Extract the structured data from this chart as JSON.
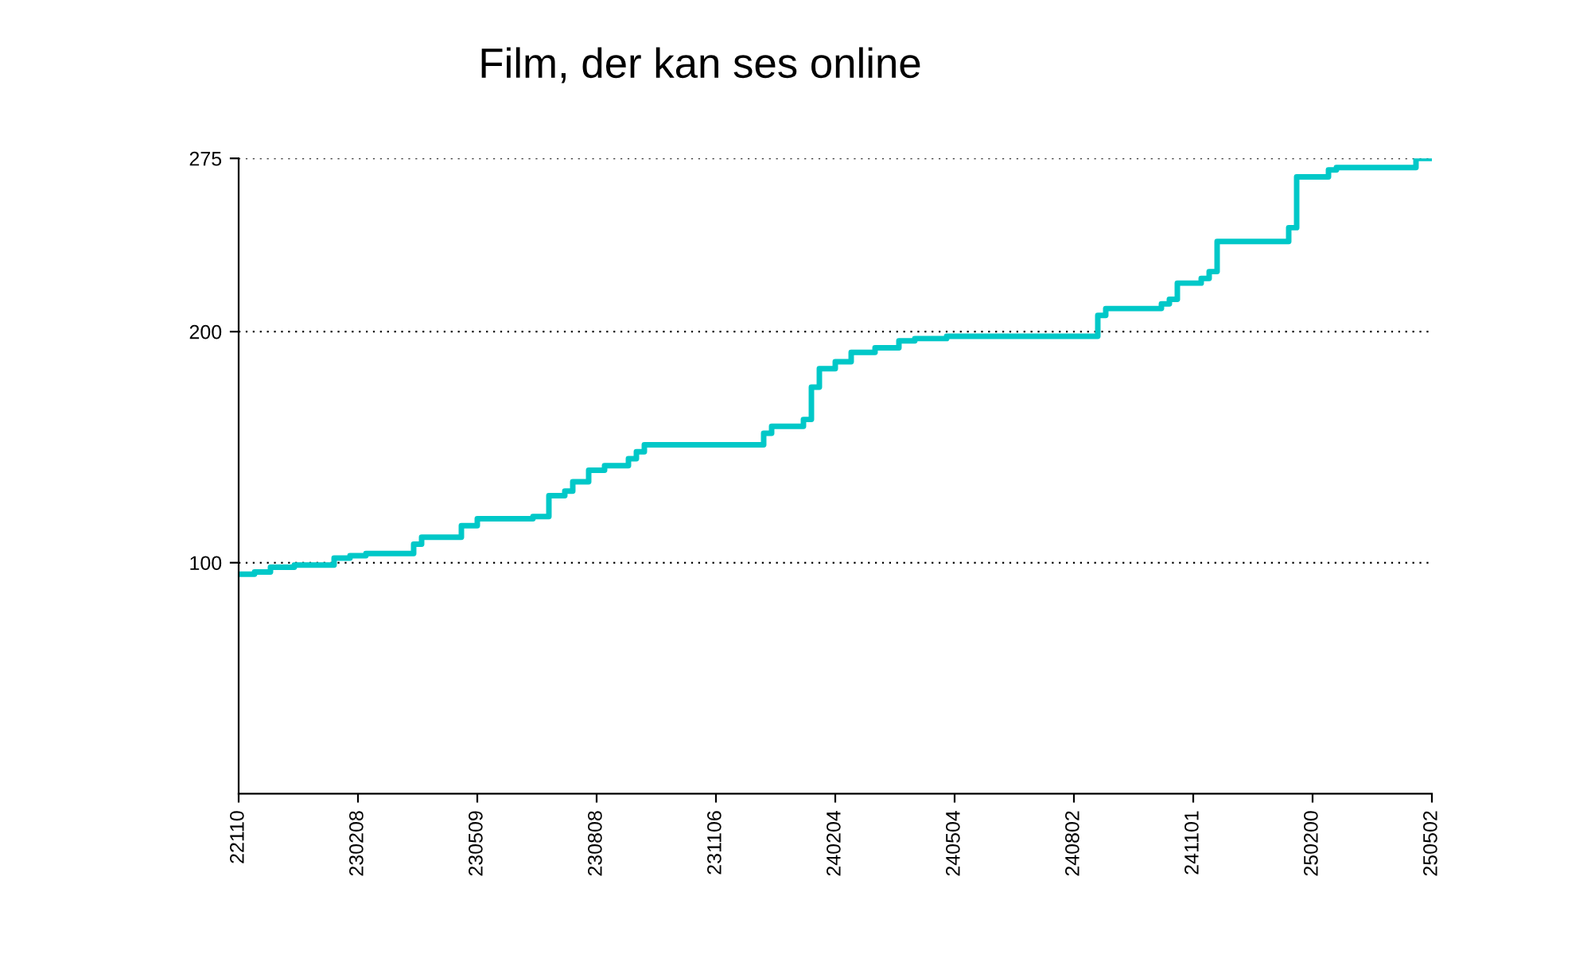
{
  "chart_data": {
    "type": "step",
    "title": "Film, der kan ses online",
    "categories": [
      "22110",
      null,
      null,
      null,
      null,
      null,
      null,
      null,
      null,
      null,
      null,
      null,
      null,
      null,
      null,
      "230208",
      null,
      null,
      null,
      null,
      null,
      null,
      null,
      null,
      null,
      null,
      null,
      null,
      null,
      null,
      "230509",
      null,
      null,
      null,
      null,
      null,
      null,
      null,
      null,
      null,
      null,
      null,
      null,
      null,
      null,
      "230808",
      null,
      null,
      null,
      null,
      null,
      null,
      null,
      null,
      null,
      null,
      null,
      null,
      null,
      null,
      "231106",
      null,
      null,
      null,
      null,
      null,
      null,
      null,
      null,
      null,
      null,
      null,
      null,
      null,
      null,
      "240204",
      null,
      null,
      null,
      null,
      null,
      null,
      null,
      null,
      null,
      null,
      null,
      null,
      null,
      null,
      "240504",
      null,
      null,
      null,
      null,
      null,
      null,
      null,
      null,
      null,
      null,
      null,
      null,
      null,
      null,
      "240802",
      null,
      null,
      null,
      null,
      null,
      null,
      null,
      null,
      null,
      null,
      null,
      null,
      null,
      null,
      "241101",
      null,
      null,
      null,
      null,
      null,
      null,
      null,
      null,
      null,
      null,
      null,
      null,
      null,
      null,
      "250200",
      null,
      null,
      null,
      null,
      null,
      null,
      null,
      null,
      null,
      null,
      null,
      null,
      null,
      null,
      "250502"
    ],
    "series": [
      {
        "color": "#00c8c8",
        "values": [
          95,
          95,
          96,
          96,
          98,
          98,
          98,
          99,
          99,
          99,
          99,
          99,
          102,
          102,
          103,
          103,
          104,
          104,
          104,
          104,
          104,
          104,
          108,
          111,
          111,
          111,
          111,
          111,
          116,
          116,
          119,
          119,
          119,
          119,
          119,
          119,
          119,
          120,
          120,
          129,
          129,
          131,
          135,
          135,
          140,
          140,
          142,
          142,
          142,
          145,
          148,
          151,
          151,
          151,
          151,
          151,
          151,
          151,
          151,
          151,
          151,
          151,
          151,
          151,
          151,
          151,
          156,
          159,
          159,
          159,
          159,
          162,
          176,
          184,
          184,
          187,
          187,
          191,
          191,
          191,
          193,
          193,
          193,
          196,
          196,
          197,
          197,
          197,
          197,
          198,
          198,
          198,
          198,
          198,
          198,
          198,
          198,
          198,
          198,
          198,
          198,
          198,
          198,
          198,
          198,
          198,
          198,
          198,
          207,
          210,
          210,
          210,
          210,
          210,
          210,
          210,
          212,
          214,
          221,
          221,
          221,
          223,
          226,
          239,
          239,
          239,
          239,
          239,
          239,
          239,
          239,
          239,
          245,
          267,
          267,
          267,
          267,
          270,
          271,
          271,
          271,
          271,
          271,
          271,
          271,
          271,
          271,
          271,
          275,
          275,
          275
        ]
      }
    ],
    "ylim": [
      0,
      275
    ],
    "yticks": [
      100,
      200,
      275
    ],
    "grid": "y",
    "line_style": "solid"
  }
}
